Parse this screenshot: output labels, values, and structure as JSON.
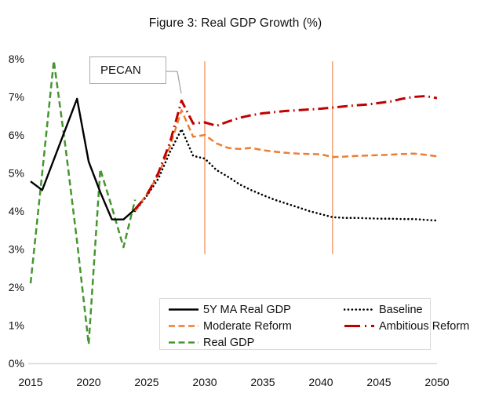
{
  "chart_data": {
    "type": "line",
    "title": "Figure 3: Real GDP Growth (%)",
    "xlabel": "",
    "ylabel": "",
    "xlim": [
      2015,
      2050
    ],
    "ylim": [
      0,
      8
    ],
    "grid": false,
    "axis_line_color": "#d9d9d9",
    "x_ticks": {
      "values": [
        2015,
        2020,
        2025,
        2030,
        2035,
        2040,
        2045,
        2050
      ],
      "labels": [
        "2015",
        "2020",
        "2025",
        "2030",
        "2035",
        "2040",
        "2045",
        "2050"
      ]
    },
    "y_ticks": {
      "values": [
        0,
        1,
        2,
        3,
        4,
        5,
        6,
        7,
        8
      ],
      "labels": [
        "0%",
        "1%",
        "2%",
        "3%",
        "4%",
        "5%",
        "6%",
        "7%",
        "8%"
      ]
    },
    "annotation": {
      "label": "PECAN"
    },
    "vertical_marker_years": [
      2030,
      2041
    ],
    "vertical_marker_color": "#f5a67b",
    "legend_position": "bottom-center-box",
    "series": [
      {
        "name": "5Y MA Real GDP",
        "color": "#000000",
        "style": "solid",
        "points": [
          [
            2015,
            4.78
          ],
          [
            2016,
            4.55
          ],
          [
            2017,
            5.35
          ],
          [
            2018,
            6.15
          ],
          [
            2019,
            6.95
          ],
          [
            2020,
            5.3
          ],
          [
            2021,
            4.5
          ],
          [
            2022,
            3.78
          ],
          [
            2023,
            3.78
          ],
          [
            2024,
            4.05
          ]
        ]
      },
      {
        "name": "Baseline",
        "color": "#000000",
        "style": "dotted",
        "points": [
          [
            2024,
            4.0
          ],
          [
            2025,
            4.4
          ],
          [
            2026,
            4.85
          ],
          [
            2027,
            5.55
          ],
          [
            2028,
            6.15
          ],
          [
            2029,
            5.45
          ],
          [
            2030,
            5.38
          ],
          [
            2031,
            5.08
          ],
          [
            2032,
            4.9
          ],
          [
            2033,
            4.7
          ],
          [
            2034,
            4.55
          ],
          [
            2035,
            4.42
          ],
          [
            2036,
            4.3
          ],
          [
            2037,
            4.2
          ],
          [
            2038,
            4.1
          ],
          [
            2039,
            4.0
          ],
          [
            2040,
            3.92
          ],
          [
            2041,
            3.84
          ],
          [
            2042,
            3.82
          ],
          [
            2043,
            3.82
          ],
          [
            2044,
            3.81
          ],
          [
            2045,
            3.8
          ],
          [
            2046,
            3.8
          ],
          [
            2047,
            3.79
          ],
          [
            2048,
            3.79
          ],
          [
            2049,
            3.77
          ],
          [
            2050,
            3.75
          ]
        ]
      },
      {
        "name": "Moderate Reform",
        "color": "#ed7d31",
        "style": "dashed",
        "points": [
          [
            2024,
            4.0
          ],
          [
            2025,
            4.45
          ],
          [
            2026,
            4.95
          ],
          [
            2027,
            5.7
          ],
          [
            2028,
            6.65
          ],
          [
            2029,
            5.95
          ],
          [
            2030,
            6.0
          ],
          [
            2031,
            5.78
          ],
          [
            2032,
            5.66
          ],
          [
            2033,
            5.63
          ],
          [
            2034,
            5.66
          ],
          [
            2035,
            5.6
          ],
          [
            2036,
            5.56
          ],
          [
            2037,
            5.53
          ],
          [
            2038,
            5.51
          ],
          [
            2039,
            5.5
          ],
          [
            2040,
            5.49
          ],
          [
            2041,
            5.42
          ],
          [
            2042,
            5.43
          ],
          [
            2043,
            5.45
          ],
          [
            2044,
            5.46
          ],
          [
            2045,
            5.47
          ],
          [
            2046,
            5.48
          ],
          [
            2047,
            5.5
          ],
          [
            2048,
            5.51
          ],
          [
            2049,
            5.48
          ],
          [
            2050,
            5.44
          ]
        ]
      },
      {
        "name": "Ambitious Reform",
        "color": "#c00000",
        "style": "dashdot",
        "points": [
          [
            2024,
            4.05
          ],
          [
            2025,
            4.4
          ],
          [
            2026,
            5.0
          ],
          [
            2027,
            5.8
          ],
          [
            2028,
            6.9
          ],
          [
            2029,
            6.3
          ],
          [
            2030,
            6.33
          ],
          [
            2031,
            6.24
          ],
          [
            2032,
            6.35
          ],
          [
            2033,
            6.45
          ],
          [
            2034,
            6.52
          ],
          [
            2035,
            6.57
          ],
          [
            2036,
            6.6
          ],
          [
            2037,
            6.63
          ],
          [
            2038,
            6.65
          ],
          [
            2039,
            6.67
          ],
          [
            2040,
            6.69
          ],
          [
            2041,
            6.72
          ],
          [
            2042,
            6.75
          ],
          [
            2043,
            6.78
          ],
          [
            2044,
            6.8
          ],
          [
            2045,
            6.84
          ],
          [
            2046,
            6.88
          ],
          [
            2047,
            6.95
          ],
          [
            2048,
            7.0
          ],
          [
            2049,
            7.02
          ],
          [
            2050,
            6.97
          ]
        ]
      },
      {
        "name": "Real GDP",
        "color": "#44962f",
        "style": "dashed",
        "points": [
          [
            2015,
            2.1
          ],
          [
            2016,
            5.0
          ],
          [
            2017,
            7.95
          ],
          [
            2018,
            5.7
          ],
          [
            2019,
            3.2
          ],
          [
            2020,
            0.5
          ],
          [
            2021,
            5.1
          ],
          [
            2022,
            4.1
          ],
          [
            2023,
            3.05
          ],
          [
            2024,
            4.3
          ]
        ]
      }
    ]
  },
  "legend": {
    "items": [
      {
        "label": "5Y MA Real GDP",
        "series": 0
      },
      {
        "label": "Baseline",
        "series": 1
      },
      {
        "label": "Moderate Reform",
        "series": 2
      },
      {
        "label": "Ambitious Reform",
        "series": 3
      },
      {
        "label": "Real GDP",
        "series": 4
      }
    ]
  }
}
